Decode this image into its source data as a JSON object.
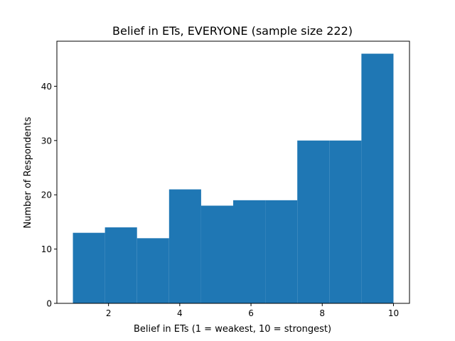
{
  "chart_data": {
    "type": "bar",
    "title": "Belief in ETs, EVERYONE (sample size 222)",
    "xlabel": "Belief in ETs (1 = weakest, 10 = strongest)",
    "ylabel": "Number of Respondents",
    "bins": [
      {
        "start": 1.0,
        "end": 1.9,
        "value": 13
      },
      {
        "start": 1.9,
        "end": 2.8,
        "value": 14
      },
      {
        "start": 2.8,
        "end": 3.7,
        "value": 12
      },
      {
        "start": 3.7,
        "end": 4.6,
        "value": 21
      },
      {
        "start": 4.6,
        "end": 5.5,
        "value": 18
      },
      {
        "start": 5.5,
        "end": 6.4,
        "value": 19
      },
      {
        "start": 6.4,
        "end": 7.3,
        "value": 19
      },
      {
        "start": 7.3,
        "end": 8.2,
        "value": 30
      },
      {
        "start": 8.2,
        "end": 9.1,
        "value": 30
      },
      {
        "start": 9.1,
        "end": 10.0,
        "value": 46
      }
    ],
    "xlim": [
      0.55,
      10.45
    ],
    "ylim": [
      0,
      48.3
    ],
    "xticks": [
      2,
      4,
      6,
      8,
      10
    ],
    "yticks": [
      0,
      10,
      20,
      30,
      40
    ],
    "bar_color": "#1f77b4",
    "grid": false
  }
}
